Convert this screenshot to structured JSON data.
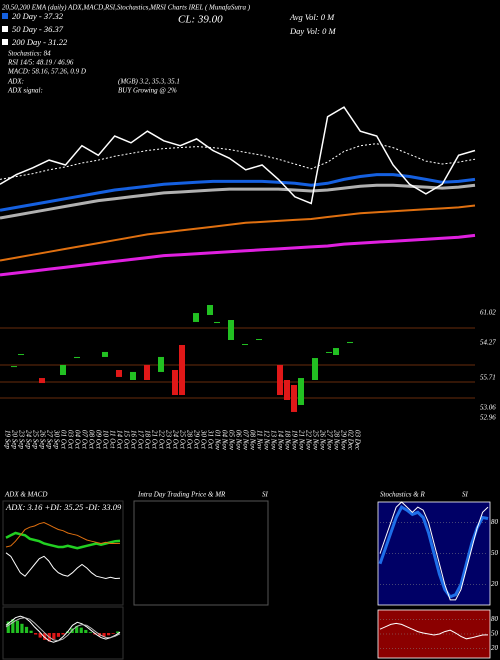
{
  "header": {
    "title": "20,50,200 EMA (daily) ADX,MACD,RSI,Stochastics,MRSI Charts IREL ( MunafaSutra )",
    "legend": [
      "20 Day - 37.32",
      "50 Day - 36.37",
      "200 Day - 31.22"
    ],
    "stats": [
      "Stochastics: 84",
      "RSI 14/5: 48.19 / 46.96",
      "MACD: 58.16, 57.26, 0.9 D"
    ],
    "close": "CL: 39.00",
    "avg_vol": "Avg Vol: 0 M",
    "day_vol": "Day Vol: 0 M",
    "adx": [
      "ADX:",
      "(MGB) 3.2, 35.3, 35.1"
    ],
    "adx_signal": [
      "ADX signal:",
      "BUY Growing @ 2%"
    ],
    "panels": [
      "ADX & MACD",
      "Intra Day Trading Price & MR",
      "SI",
      "Stochastics & R",
      "SI"
    ],
    "adx_values": "ADX: 3.16 +DI: 35.25 -DI: 33.09"
  },
  "chart_data": [
    {
      "type": "line",
      "ylim": [
        24.5,
        55.6
      ],
      "series": [
        {
          "color": "#e07010",
          "width": 2,
          "values": [
            28.6,
            28.9,
            29.2,
            29.5,
            29.8,
            30.1,
            30.4,
            30.7,
            31,
            31.3,
            31.5,
            31.7,
            31.9,
            32.1,
            32.3,
            32.5,
            32.6,
            32.7,
            32.8,
            32.9,
            33.1,
            33.3,
            33.5,
            33.6,
            33.7,
            33.8,
            33.9,
            34,
            34.1,
            34.3
          ]
        },
        {
          "color": "#e020e0",
          "width": 3,
          "values": [
            27.1,
            27.3,
            27.5,
            27.7,
            27.9,
            28.1,
            28.3,
            28.5,
            28.7,
            28.9,
            29.1,
            29.2,
            29.3,
            29.4,
            29.5,
            29.6,
            29.7,
            29.8,
            29.9,
            30,
            30.1,
            30.3,
            30.4,
            30.5,
            30.6,
            30.7,
            30.8,
            30.9,
            31,
            31.2
          ]
        },
        {
          "color": "#b0b0b0",
          "width": 3,
          "values": [
            33,
            33.3,
            33.6,
            33.9,
            34.2,
            34.5,
            34.8,
            35,
            35.2,
            35.4,
            35.6,
            35.7,
            35.8,
            35.9,
            36,
            36,
            36,
            36,
            35.9,
            35.8,
            35.9,
            36.1,
            36.3,
            36.4,
            36.4,
            36.3,
            36.2,
            36.1,
            36.2,
            36.4
          ]
        },
        {
          "color": "#1560e0",
          "width": 3,
          "values": [
            33.8,
            34.1,
            34.4,
            34.7,
            35,
            35.3,
            35.6,
            35.9,
            36.1,
            36.3,
            36.5,
            36.6,
            36.7,
            36.8,
            36.8,
            36.8,
            36.8,
            36.7,
            36.6,
            36.4,
            36.6,
            37,
            37.3,
            37.5,
            37.5,
            37.3,
            37,
            36.7,
            36.8,
            37
          ]
        },
        {
          "color": "#ffffff",
          "width": 1,
          "dash": true,
          "values": [
            37,
            37.3,
            37.6,
            38,
            38.3,
            38.7,
            39,
            39.4,
            39.7,
            40,
            40.2,
            40.3,
            40.4,
            40.3,
            40.1,
            39.8,
            39.5,
            39.1,
            38.6,
            38.1,
            38.8,
            39.9,
            40.5,
            40.7,
            40.3,
            39.6,
            38.9,
            38.6,
            38.8,
            39.1
          ]
        },
        {
          "color": "#ffffff",
          "width": 1.5,
          "values": [
            36.5,
            37.5,
            38.2,
            39,
            38.5,
            40.5,
            39.5,
            41.5,
            40.8,
            42,
            41,
            40.5,
            41.2,
            40,
            39.2,
            38,
            38.5,
            37,
            35.2,
            34.5,
            43.5,
            44.5,
            42,
            41.5,
            38.5,
            36.5,
            35.5,
            36.5,
            39.5,
            40
          ]
        }
      ]
    },
    {
      "type": "candlestick",
      "ylim": [
        50,
        64
      ],
      "up_color": "#22c022",
      "down_color": "#e01818",
      "level_labels": [
        "61.02",
        "54.27",
        "55.71",
        "53.06",
        "52.96"
      ],
      "categories": [
        "19 Sep",
        "20 Sep",
        "23 Sep",
        "24 Sep",
        "25 Sep",
        "26 Sep",
        "27 Sep",
        "30 Sep",
        "01 Oct",
        "03 Oct",
        "04 Oct",
        "07 Oct",
        "08 Oct",
        "09 Oct",
        "10 Oct",
        "11 Oct",
        "14 Oct",
        "15 Oct",
        "16 Oct",
        "17 Oct",
        "18 Oct",
        "21 Oct",
        "22 Oct",
        "23 Oct",
        "24 Oct",
        "25 Oct",
        "28 Oct",
        "29 Oct",
        "30 Oct",
        "31 Oct",
        "01 Nov",
        "04 Nov",
        "05 Nov",
        "06 Nov",
        "07 Nov",
        "08 Nov",
        "11 Nov",
        "12 Nov",
        "13 Nov",
        "14 Nov",
        "18 Nov",
        "19 Nov",
        "21 Nov",
        "22 Nov",
        "25 Nov",
        "26 Nov",
        "27 Nov",
        "28 Nov",
        "29 Nov",
        "02 Dec",
        "03 Dec"
      ],
      "open": [
        null,
        56.5,
        57.84,
        null,
        null,
        55.26,
        null,
        null,
        55.6,
        null,
        57.5,
        null,
        null,
        null,
        57.62,
        null,
        56.16,
        null,
        55.04,
        null,
        56.72,
        null,
        55.94,
        null,
        56.16,
        58.96,
        null,
        61.54,
        null,
        62.32,
        61.42,
        null,
        59.52,
        null,
        58.96,
        null,
        59.52,
        null,
        null,
        56.72,
        55.04,
        54.48,
        52.24,
        null,
        55.04,
        null,
        58.07,
        57.84,
        null,
        59.18,
        null
      ],
      "close": [
        null,
        56.6,
        57.95,
        null,
        null,
        54.7,
        null,
        null,
        56.72,
        null,
        57.62,
        null,
        null,
        null,
        58.18,
        null,
        55.38,
        null,
        55.94,
        null,
        55.04,
        null,
        57.62,
        null,
        53.36,
        53.36,
        null,
        62.54,
        null,
        63.44,
        61.54,
        null,
        61.76,
        null,
        59.07,
        null,
        59.63,
        null,
        null,
        53.36,
        52.8,
        51.46,
        55.26,
        null,
        57.5,
        null,
        58.18,
        58.62,
        null,
        59.3,
        null
      ]
    },
    {
      "type": "line",
      "ylim": [
        0,
        60
      ],
      "series": [
        {
          "color": "#22d022",
          "width": 2.5,
          "values": [
            38,
            40,
            42,
            41,
            40,
            37,
            36,
            35,
            33,
            32,
            31,
            30,
            30,
            31,
            30,
            29,
            30,
            31,
            32,
            33,
            32,
            33,
            34,
            35,
            35.25
          ]
        },
        {
          "color": "#e07010",
          "width": 1,
          "values": [
            30,
            31,
            35,
            40,
            45,
            47,
            48,
            50,
            51,
            49,
            47,
            45,
            44,
            42,
            41,
            40,
            38,
            36,
            35,
            34,
            33,
            34,
            33,
            33,
            33.09
          ]
        },
        {
          "color": "#ffffff",
          "width": 1,
          "values": [
            25,
            22,
            15,
            8,
            5,
            10,
            15,
            20,
            22,
            18,
            12,
            8,
            6,
            5,
            8,
            12,
            15,
            12,
            8,
            5,
            4,
            3,
            4,
            3,
            3.16
          ]
        }
      ]
    },
    {
      "type": "macd",
      "ylim": [
        -3,
        3
      ],
      "color": "#22c022",
      "negative_color": "#e01818",
      "values": [
        1.5,
        1.8,
        1.6,
        1.2,
        0.8,
        0.3,
        -0.2,
        -0.6,
        -0.9,
        -1.1,
        -0.8,
        -0.5,
        -0.2,
        0.2,
        0.6,
        0.9,
        0.7,
        0.4,
        0.1,
        -0.2,
        -0.4,
        -0.5,
        -0.3,
        -0.1,
        0.2
      ],
      "series": [
        {
          "color": "#ffffff",
          "width": 1,
          "values": [
            1,
            1.5,
            2,
            2.2,
            2,
            1.5,
            0.8,
            0.2,
            -0.5,
            -1,
            -1.2,
            -1,
            -0.5,
            0.2,
            1,
            1.4,
            1.2,
            0.8,
            0.3,
            -0.2,
            -0.6,
            -0.8,
            -0.6,
            -0.3,
            0.1
          ]
        },
        {
          "color": "#bbbbbb",
          "width": 1,
          "values": [
            0.8,
            1.2,
            1.6,
            1.9,
            2,
            1.8,
            1.3,
            0.7,
            0.1,
            -0.5,
            -0.9,
            -1,
            -0.8,
            -0.3,
            0.4,
            0.9,
            1.1,
            1,
            0.6,
            0.1,
            -0.3,
            -0.6,
            -0.6,
            -0.4,
            -0.1
          ]
        }
      ]
    },
    {
      "type": "line",
      "ylim": [
        0,
        100
      ],
      "yticks": [
        80,
        50,
        20
      ],
      "background": "#000066",
      "series": [
        {
          "color": "#1e6ee8",
          "width": 3,
          "values": [
            40,
            55,
            70,
            85,
            95,
            92,
            88,
            90,
            85,
            70,
            50,
            30,
            15,
            8,
            10,
            20,
            40,
            60,
            75,
            85,
            84
          ]
        },
        {
          "color": "#ffffff",
          "width": 1,
          "values": [
            50,
            65,
            80,
            95,
            100,
            95,
            90,
            95,
            92,
            80,
            60,
            40,
            20,
            5,
            5,
            15,
            35,
            55,
            75,
            90,
            95
          ]
        }
      ]
    },
    {
      "type": "line",
      "ylim": [
        0,
        100
      ],
      "yticks": [
        80,
        50,
        20
      ],
      "background": "#8b0000",
      "series": [
        {
          "color": "#ffffff",
          "width": 1,
          "values": [
            60,
            65,
            70,
            72,
            70,
            65,
            60,
            55,
            52,
            50,
            48,
            50,
            55,
            58,
            52,
            45,
            40,
            42,
            45,
            48,
            48.19
          ]
        }
      ]
    }
  ]
}
